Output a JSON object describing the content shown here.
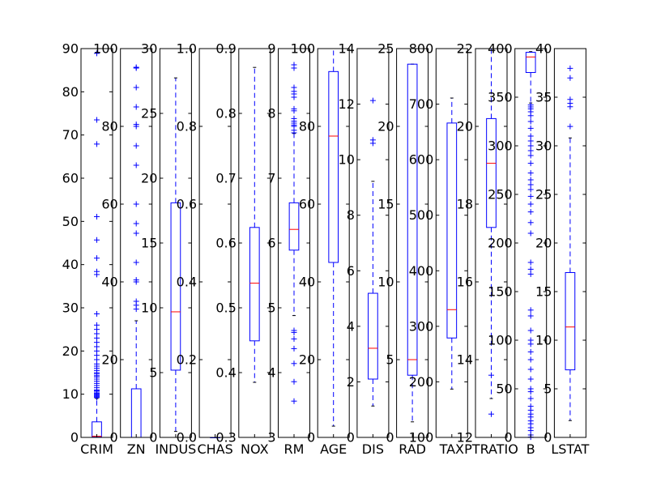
{
  "chart_data": {
    "type": "boxplot",
    "title": "",
    "grid": false,
    "panels": [
      {
        "name": "CRIM",
        "ylim": [
          0,
          90
        ],
        "ticks": [
          0,
          10,
          20,
          30,
          40,
          50,
          60,
          70,
          80,
          90
        ],
        "tick_labels": [
          "0",
          "10",
          "20",
          "30",
          "40",
          "50",
          "60",
          "70",
          "80",
          "90"
        ],
        "box": {
          "whisker_low": 0.0,
          "q1": 0.08,
          "median": 0.26,
          "q3": 3.6,
          "whisker_high": 9.0
        },
        "fliers": [
          9.2,
          9.4,
          9.6,
          9.8,
          10,
          10.2,
          10.5,
          10.8,
          11,
          11.5,
          12,
          12.5,
          13,
          13.5,
          14,
          14.3,
          14.7,
          15,
          15.5,
          16,
          16.5,
          17,
          18,
          19,
          20,
          21,
          22,
          23,
          24,
          25,
          26,
          28.6,
          37.7,
          38.4,
          41.5,
          45.7,
          51.1,
          67.9,
          73.5,
          88.9
        ]
      },
      {
        "name": "ZN",
        "ylim": [
          0,
          100
        ],
        "ticks": [
          0,
          20,
          40,
          60,
          80,
          100
        ],
        "tick_labels": [
          "0",
          "20",
          "40",
          "60",
          "80",
          "100"
        ],
        "box": {
          "whisker_low": 0,
          "q1": 0,
          "median": 0,
          "q3": 12.5,
          "whisker_high": 30
        },
        "fliers": [
          33,
          34,
          35,
          40,
          40.5,
          45,
          52.5,
          55,
          60,
          70,
          75,
          80,
          80.5,
          85,
          90,
          95,
          95.2
        ]
      },
      {
        "name": "INDUS",
        "ylim": [
          0,
          30
        ],
        "ticks": [
          0,
          5,
          10,
          15,
          20,
          25,
          30
        ],
        "tick_labels": [
          "0",
          "5",
          "10",
          "15",
          "20",
          "25",
          "30"
        ],
        "box": {
          "whisker_low": 0.46,
          "q1": 5.19,
          "median": 9.69,
          "q3": 18.1,
          "whisker_high": 27.74
        },
        "fliers": []
      },
      {
        "name": "CHAS",
        "ylim": [
          0.0,
          1.0
        ],
        "ticks": [
          0.0,
          0.2,
          0.4,
          0.6,
          0.8,
          1.0
        ],
        "tick_labels": [
          "0.0",
          "0.2",
          "0.4",
          "0.6",
          "0.8",
          "1.0"
        ],
        "box": {
          "whisker_low": 0,
          "q1": 0,
          "median": 0,
          "q3": 0,
          "whisker_high": 0
        },
        "fliers": []
      },
      {
        "name": "NOX",
        "ylim": [
          0.3,
          0.9
        ],
        "ticks": [
          0.3,
          0.4,
          0.5,
          0.6,
          0.7,
          0.8,
          0.9
        ],
        "tick_labels": [
          "0.3",
          "0.4",
          "0.5",
          "0.6",
          "0.7",
          "0.8",
          "0.9"
        ],
        "box": {
          "whisker_low": 0.385,
          "q1": 0.449,
          "median": 0.538,
          "q3": 0.624,
          "whisker_high": 0.871
        },
        "fliers": []
      },
      {
        "name": "RM",
        "ylim": [
          3,
          9
        ],
        "ticks": [
          3,
          4,
          5,
          6,
          7,
          8,
          9
        ],
        "tick_labels": [
          "3",
          "4",
          "5",
          "6",
          "7",
          "8",
          "9"
        ],
        "box": {
          "whisker_low": 4.88,
          "q1": 5.89,
          "median": 6.21,
          "q3": 6.62,
          "whisker_high": 7.69
        },
        "fliers": [
          3.56,
          3.86,
          4.14,
          4.37,
          4.52,
          4.62,
          4.65,
          7.7,
          7.74,
          7.8,
          7.82,
          7.85,
          7.88,
          7.92,
          8.04,
          8.07,
          8.25,
          8.3,
          8.34,
          8.4,
          8.7,
          8.75
        ]
      },
      {
        "name": "AGE",
        "ylim": [
          0,
          100
        ],
        "ticks": [
          0,
          20,
          40,
          60,
          80,
          100
        ],
        "tick_labels": [
          "0",
          "20",
          "40",
          "60",
          "80",
          "100"
        ],
        "box": {
          "whisker_low": 2.9,
          "q1": 45.0,
          "median": 77.5,
          "q3": 94.1,
          "whisker_high": 100
        },
        "fliers": []
      },
      {
        "name": "DIS",
        "ylim": [
          0,
          14
        ],
        "ticks": [
          0,
          2,
          4,
          6,
          8,
          10,
          12,
          14
        ],
        "tick_labels": [
          "0",
          "2",
          "4",
          "6",
          "8",
          "10",
          "12",
          "14"
        ],
        "box": {
          "whisker_low": 1.13,
          "q1": 2.1,
          "median": 3.21,
          "q3": 5.19,
          "whisker_high": 9.22
        },
        "fliers": [
          10.59,
          10.71,
          12.13
        ]
      },
      {
        "name": "RAD",
        "ylim": [
          0,
          25
        ],
        "ticks": [
          0,
          5,
          10,
          15,
          20,
          25
        ],
        "tick_labels": [
          "0",
          "5",
          "10",
          "15",
          "20",
          "25"
        ],
        "box": {
          "whisker_low": 1,
          "q1": 4,
          "median": 5,
          "q3": 24,
          "whisker_high": 24
        },
        "fliers": []
      },
      {
        "name": "TAX",
        "ylim": [
          100,
          800
        ],
        "ticks": [
          100,
          200,
          300,
          400,
          500,
          600,
          700,
          800
        ],
        "tick_labels": [
          "100",
          "200",
          "300",
          "400",
          "500",
          "600",
          "700",
          "800"
        ],
        "box": {
          "whisker_low": 187,
          "q1": 279,
          "median": 330,
          "q3": 666,
          "whisker_high": 711
        },
        "fliers": []
      },
      {
        "name": "PTRATIO",
        "ylim": [
          12,
          22
        ],
        "ticks": [
          12,
          14,
          16,
          18,
          20,
          22
        ],
        "tick_labels": [
          "12",
          "14",
          "16",
          "18",
          "20",
          "22"
        ],
        "box": {
          "whisker_low": 13.0,
          "q1": 17.4,
          "median": 19.05,
          "q3": 20.2,
          "whisker_high": 22.0
        },
        "fliers": [
          12.6,
          13.6
        ]
      },
      {
        "name": "B",
        "ylim": [
          0,
          400
        ],
        "ticks": [
          0,
          50,
          100,
          150,
          200,
          250,
          300,
          350,
          400
        ],
        "tick_labels": [
          "0",
          "50",
          "100",
          "150",
          "200",
          "250",
          "300",
          "350",
          "400"
        ],
        "box": {
          "whisker_low": 344,
          "q1": 375.4,
          "median": 391.4,
          "q3": 396.2,
          "whisker_high": 396.9
        },
        "fliers": [
          0.3,
          2.5,
          7,
          10,
          14,
          17,
          21,
          24,
          28,
          32,
          40,
          47,
          50,
          60,
          70,
          80,
          88,
          96,
          100,
          110,
          125,
          131,
          168,
          173,
          180,
          210,
          221,
          232,
          240,
          248,
          255,
          260,
          265,
          272,
          282,
          290,
          295,
          300,
          305,
          310,
          318,
          325,
          331,
          335,
          338,
          340,
          342
        ]
      },
      {
        "name": "LSTAT",
        "ylim": [
          0,
          40
        ],
        "ticks": [
          0,
          5,
          10,
          15,
          20,
          25,
          30,
          35,
          40
        ],
        "tick_labels": [
          "0",
          "5",
          "10",
          "15",
          "20",
          "25",
          "30",
          "35",
          "40"
        ],
        "box": {
          "whisker_low": 1.73,
          "q1": 6.95,
          "median": 11.36,
          "q3": 16.96,
          "whisker_high": 30.81
        },
        "fliers": [
          31.99,
          34.02,
          34.37,
          34.77,
          36.98,
          37.97
        ]
      }
    ],
    "colors": {
      "box": "#0000ff",
      "median": "#ff0000",
      "flier": "#0000ff",
      "axis": "#000000"
    }
  }
}
